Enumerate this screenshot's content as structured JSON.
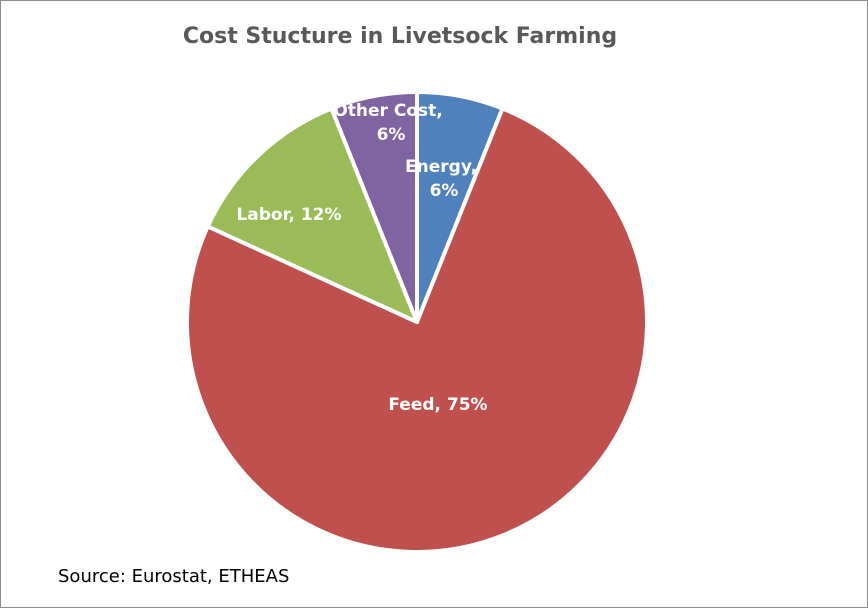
{
  "chart_data": {
    "type": "pie",
    "title": "Cost Stucture in  Livetsock Farming",
    "categories": [
      "Energy",
      "Feed",
      "Labor",
      "Other Cost"
    ],
    "values": [
      6,
      75,
      12,
      6
    ],
    "value_labels": [
      "Energy, 6%",
      "Feed, 75%",
      "Labor, 12%",
      "Other Cost, 6%"
    ],
    "colors": [
      "#4f81bd",
      "#c0504d",
      "#9bbb59",
      "#8064a2"
    ],
    "source": "Source: Eurostat, ETHEAS"
  }
}
